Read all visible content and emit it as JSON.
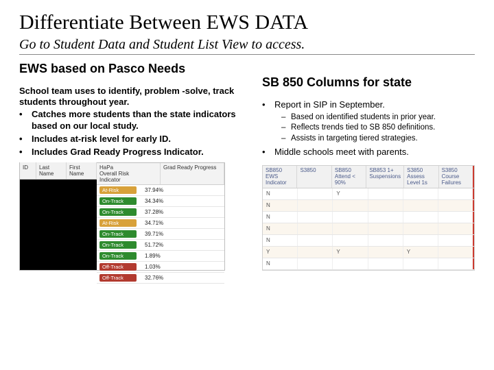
{
  "title": "Differentiate Between EWS DATA",
  "subtitle": "Go to Student Data and Student List View to access.",
  "left": {
    "heading": "EWS based on Pasco Needs",
    "lead": "School team uses to identify, problem -solve, track students throughout year.",
    "bullets": [
      "Catches more students than the state indicators based on our local study.",
      "Includes at-risk level for early ID.",
      "Includes Grad Ready Progress Indicator."
    ]
  },
  "right": {
    "heading": "SB 850 Columns for state",
    "bullets": [
      {
        "text": "Report in SIP in September.",
        "sub": [
          "Based on identified students in prior year.",
          "Reflects trends tied to SB 850 definitions.",
          "Assists in targeting tiered strategies."
        ]
      },
      {
        "text": "Middle schools meet with parents."
      }
    ]
  },
  "shot_left": {
    "dark_headers": [
      "ID",
      "Last Name",
      "First Name"
    ],
    "right_headers": [
      "HaPa\nOverall Risk\nIndicator",
      "Grad Ready Progress"
    ],
    "rows": [
      {
        "chip": "At-Risk",
        "color": "#d8a13a",
        "pct": "37.94%"
      },
      {
        "chip": "On-Track",
        "color": "#2e8b2e",
        "pct": "34.34%"
      },
      {
        "chip": "On-Track",
        "color": "#2e8b2e",
        "pct": "37.28%"
      },
      {
        "chip": "At-Risk",
        "color": "#d8a13a",
        "pct": "34.71%"
      },
      {
        "chip": "On-Track",
        "color": "#2e8b2e",
        "pct": "39.71%"
      },
      {
        "chip": "On-Track",
        "color": "#2e8b2e",
        "pct": "51.72%"
      },
      {
        "chip": "On-Track",
        "color": "#2e8b2e",
        "pct": "1.89%"
      },
      {
        "chip": "Off-Track",
        "color": "#b23a2f",
        "pct": "1.03%"
      },
      {
        "chip": "Off-Track",
        "color": "#b23a2f",
        "pct": "32.76%"
      }
    ]
  },
  "shot_right": {
    "headers": [
      "SB850 EWS Indicator",
      "S3850",
      "SB850 Attend < 90%",
      "SB853 1+ Suspensions",
      "S3850 Assess Level 1s",
      "S3850 Course Failures"
    ],
    "rows": [
      [
        "N",
        "",
        "Y",
        "",
        "",
        ""
      ],
      [
        "N",
        "",
        "",
        "",
        "",
        ""
      ],
      [
        "N",
        "",
        "",
        "",
        "",
        ""
      ],
      [
        "N",
        "",
        "",
        "",
        "",
        ""
      ],
      [
        "N",
        "",
        "",
        "",
        "",
        ""
      ],
      [
        "Y",
        "",
        "Y",
        "",
        "Y",
        ""
      ],
      [
        "N",
        "",
        "",
        "",
        "",
        ""
      ]
    ],
    "alt_color": "#fbf6ee",
    "red_border": "#cc3a2f"
  }
}
